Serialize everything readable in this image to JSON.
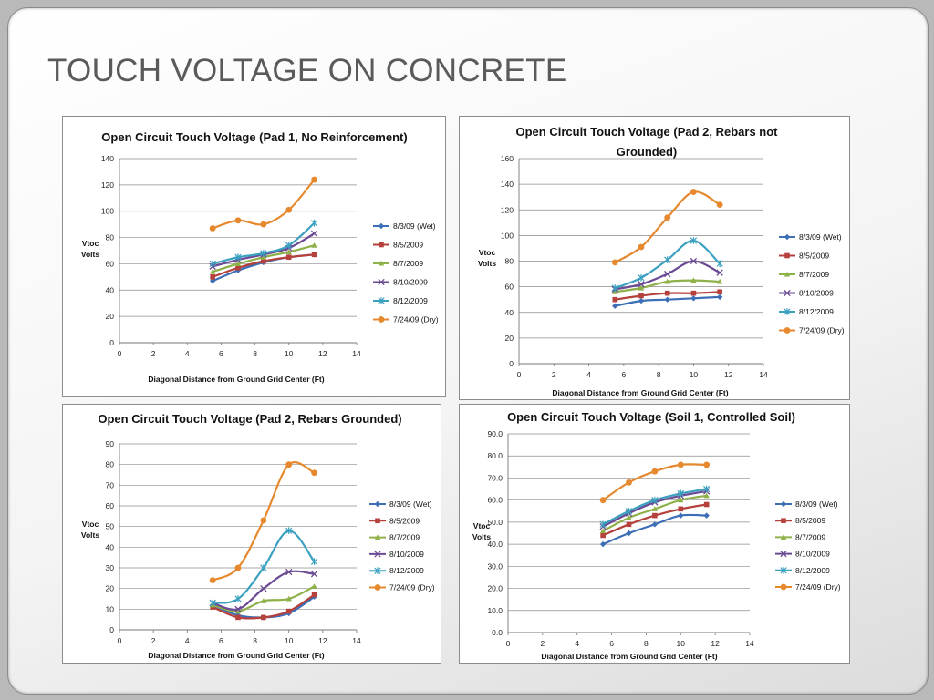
{
  "slide": {
    "title": "TOUCH VOLTAGE ON CONCRETE"
  },
  "series_styles": [
    {
      "name": "8/3/09 (Wet)",
      "color": "#3d6fb6",
      "marker": "diamond"
    },
    {
      "name": "8/5/2009",
      "color": "#b5403c",
      "marker": "square"
    },
    {
      "name": "8/7/2009",
      "color": "#8fb14a",
      "marker": "triangle"
    },
    {
      "name": "8/10/2009",
      "color": "#6a4a92",
      "marker": "x"
    },
    {
      "name": "8/12/2009",
      "color": "#3aa0c0",
      "marker": "star"
    },
    {
      "name": "7/24/09 (Dry)",
      "color": "#e6892e",
      "marker": "circle"
    }
  ],
  "chart_data": [
    {
      "type": "line",
      "title": "Open Circuit Touch Voltage (Pad 1, No Reinforcement)",
      "xlabel": "Diagonal Distance from Ground Grid Center (Ft)",
      "ylabel": "Vtoc Volts",
      "xlim": [
        0,
        14
      ],
      "ylim": [
        0,
        140
      ],
      "xticks": [
        "0",
        "2",
        "4",
        "6",
        "8",
        "10",
        "12",
        "14"
      ],
      "yticks": [
        "0",
        "20",
        "40",
        "60",
        "80",
        "100",
        "120",
        "140"
      ],
      "x": [
        5.5,
        7,
        8.5,
        10,
        11.5
      ],
      "series": [
        {
          "name": "8/3/09 (Wet)",
          "values": [
            47,
            55,
            61,
            65,
            67
          ]
        },
        {
          "name": "8/5/2009",
          "values": [
            50,
            57,
            62,
            65,
            67
          ]
        },
        {
          "name": "8/7/2009",
          "values": [
            54,
            60,
            65,
            69,
            74
          ]
        },
        {
          "name": "8/10/2009",
          "values": [
            58,
            63,
            67,
            72,
            83
          ]
        },
        {
          "name": "8/12/2009",
          "values": [
            60,
            65,
            68,
            74,
            91
          ]
        },
        {
          "name": "7/24/09 (Dry)",
          "values": [
            87,
            93,
            90,
            101,
            124
          ]
        }
      ],
      "grid": true,
      "legend": "right"
    },
    {
      "type": "line",
      "title": "Open Circuit Touch Voltage (Pad 2, Rebars not Grounded)",
      "xlabel": "Diagonal Distance from Ground Grid Center (Ft)",
      "ylabel": "Vtoc Volts",
      "xlim": [
        0,
        14
      ],
      "ylim": [
        0,
        160
      ],
      "xticks": [
        "0",
        "2",
        "4",
        "6",
        "8",
        "10",
        "12",
        "14"
      ],
      "yticks": [
        "0",
        "20",
        "40",
        "60",
        "80",
        "100",
        "120",
        "140",
        "160"
      ],
      "x": [
        5.5,
        7,
        8.5,
        10,
        11.5
      ],
      "series": [
        {
          "name": "8/3/09 (Wet)",
          "values": [
            45,
            49,
            50,
            51,
            52
          ]
        },
        {
          "name": "8/5/2009",
          "values": [
            50,
            53,
            55,
            55,
            56
          ]
        },
        {
          "name": "8/7/2009",
          "values": [
            56,
            59,
            64,
            65,
            64
          ]
        },
        {
          "name": "8/10/2009",
          "values": [
            58,
            62,
            70,
            80,
            71
          ]
        },
        {
          "name": "8/12/2009",
          "values": [
            59,
            67,
            81,
            96,
            78
          ]
        },
        {
          "name": "7/24/09 (Dry)",
          "values": [
            79,
            91,
            114,
            134,
            124
          ]
        }
      ],
      "grid": true,
      "legend": "right"
    },
    {
      "type": "line",
      "title": "Open Circuit Touch Voltage (Pad 2, Rebars Grounded)",
      "xlabel": "Diagonal Distance from Ground Grid Center (Ft)",
      "ylabel": "Vtoc Volts",
      "xlim": [
        0,
        14
      ],
      "ylim": [
        0,
        90
      ],
      "xticks": [
        "0",
        "2",
        "4",
        "6",
        "8",
        "10",
        "12",
        "14"
      ],
      "yticks": [
        "0",
        "10",
        "20",
        "30",
        "40",
        "50",
        "60",
        "70",
        "80",
        "90"
      ],
      "x": [
        5.5,
        7,
        8.5,
        10,
        11.5
      ],
      "series": [
        {
          "name": "8/3/09 (Wet)",
          "values": [
            12,
            7,
            6,
            8,
            16
          ]
        },
        {
          "name": "8/5/2009",
          "values": [
            11,
            6,
            6,
            9,
            17
          ]
        },
        {
          "name": "8/7/2009",
          "values": [
            12,
            9,
            14,
            15,
            21
          ]
        },
        {
          "name": "8/10/2009",
          "values": [
            13,
            10,
            20,
            28,
            27
          ]
        },
        {
          "name": "8/12/2009",
          "values": [
            13,
            15,
            30,
            48,
            33
          ]
        },
        {
          "name": "7/24/09 (Dry)",
          "values": [
            24,
            30,
            53,
            80,
            76
          ]
        }
      ],
      "grid": true,
      "legend": "right"
    },
    {
      "type": "line",
      "title": "Open Circuit Touch Voltage (Soil 1, Controlled Soil)",
      "xlabel": "Diagonal Distance from Ground Grid Center (Ft)",
      "ylabel": "Vtoc Volts",
      "xlim": [
        0,
        14
      ],
      "ylim": [
        0,
        90
      ],
      "xticks": [
        "0",
        "2",
        "4",
        "6",
        "8",
        "10",
        "12",
        "14"
      ],
      "yticks": [
        "0.0",
        "10.0",
        "20.0",
        "30.0",
        "40.0",
        "50.0",
        "60.0",
        "70.0",
        "80.0",
        "90.0"
      ],
      "x": [
        5.5,
        7,
        8.5,
        10,
        11.5
      ],
      "series": [
        {
          "name": "8/3/09 (Wet)",
          "values": [
            40,
            45,
            49,
            53,
            53
          ]
        },
        {
          "name": "8/5/2009",
          "values": [
            44,
            49,
            53,
            56,
            58
          ]
        },
        {
          "name": "8/7/2009",
          "values": [
            46,
            52,
            56,
            60,
            62
          ]
        },
        {
          "name": "8/10/2009",
          "values": [
            48,
            54,
            59,
            62,
            64
          ]
        },
        {
          "name": "8/12/2009",
          "values": [
            49,
            55,
            60,
            63,
            65
          ]
        },
        {
          "name": "7/24/09 (Dry)",
          "values": [
            60,
            68,
            73,
            76,
            76
          ]
        }
      ],
      "grid": true,
      "legend": "right"
    }
  ]
}
